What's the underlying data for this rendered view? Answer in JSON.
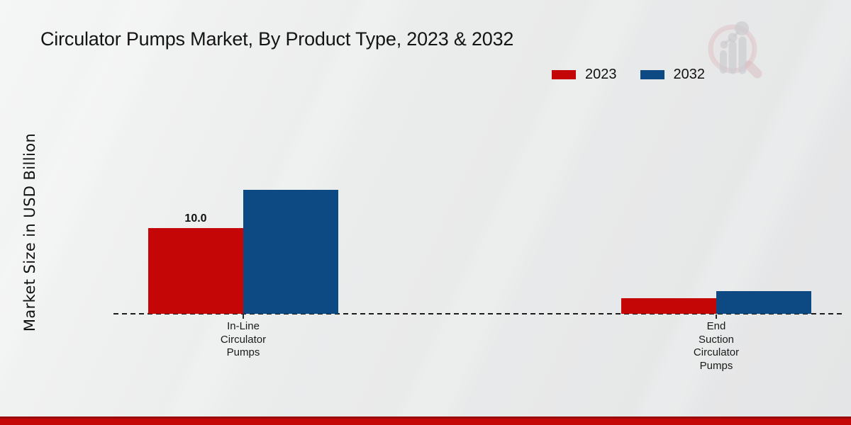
{
  "page": {
    "title": "Circulator Pumps Market, By Product Type, 2023 & 2032"
  },
  "icons": {
    "watermark": "magnifier-bar-chart-logo"
  },
  "colors": {
    "series_2023": "#c40606",
    "series_2032": "#0d4a84",
    "footer_band": "#c40707",
    "background": "#eaebeb"
  },
  "chart_data": {
    "type": "bar",
    "title": "Circulator Pumps Market, By Product Type, 2023 & 2032",
    "xlabel": "",
    "ylabel": "Market Size in USD Billion",
    "categories": [
      "In-Line\nCirculator\nPumps",
      "End\nSuction\nCirculator\nPumps"
    ],
    "series": [
      {
        "name": "2023",
        "color": "#c40606",
        "values": [
          10.0,
          1.8
        ]
      },
      {
        "name": "2032",
        "color": "#0d4a84",
        "values": [
          14.4,
          2.6
        ]
      }
    ],
    "bar_labels": [
      [
        "10.0",
        ""
      ],
      [
        "",
        ""
      ]
    ],
    "ylim": [
      0,
      23
    ],
    "grid": false,
    "baseline_style": "dashed",
    "legend_position": "top-right"
  }
}
